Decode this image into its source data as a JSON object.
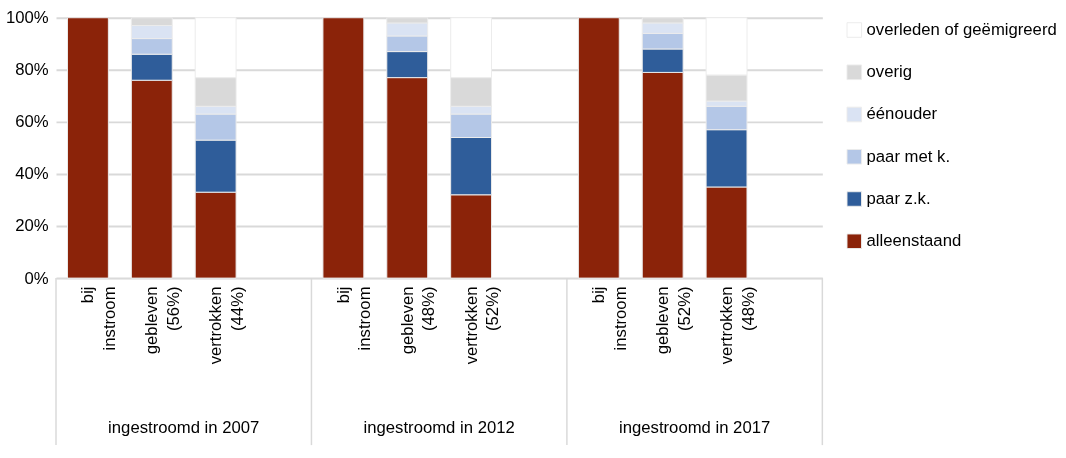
{
  "chart_data": {
    "type": "bar",
    "stacked": true,
    "categories": [
      "bij instroom",
      "gebleven (56%)",
      "vertrokken (44%)",
      null,
      "bij instroom",
      "gebleven (48%)",
      "vertrokken (52%)",
      null,
      "bij instroom",
      "gebleven (52%)",
      "vertrokken (48%)",
      null
    ],
    "series": [
      {
        "name": "alleenstaand",
        "color": "#8b2309",
        "values": [
          100,
          76,
          33,
          null,
          100,
          77,
          32,
          null,
          100,
          79,
          35,
          null
        ]
      },
      {
        "name": "paar z.k.",
        "color": "#2f5d9a",
        "values": [
          0,
          10,
          20,
          null,
          0,
          10,
          22,
          null,
          0,
          9,
          22,
          null
        ]
      },
      {
        "name": "paar met k.",
        "color": "#b4c7e7",
        "values": [
          0,
          6,
          10,
          null,
          0,
          6,
          9,
          null,
          0,
          6,
          9,
          null
        ]
      },
      {
        "name": "éénouder",
        "color": "#dae3f3",
        "values": [
          0,
          5,
          3,
          null,
          0,
          5,
          3,
          null,
          0,
          4,
          2,
          null
        ]
      },
      {
        "name": "overig",
        "color": "#d9d9d9",
        "values": [
          0,
          3,
          11,
          null,
          0,
          2,
          11,
          null,
          0,
          2,
          10,
          null
        ]
      },
      {
        "name": "overleden of geëmigreerd",
        "color": "#ffffff",
        "values": [
          0,
          0,
          23,
          null,
          0,
          0,
          23,
          null,
          0,
          0,
          22,
          null
        ]
      }
    ],
    "annotations": [
      "ingestroomd in 2007",
      "ingestroomd in 2012",
      "ingestroomd in 2017"
    ],
    "ylim": [
      0,
      100
    ],
    "yticks": [
      {
        "value": 0,
        "label": "0%"
      },
      {
        "value": 20,
        "label": "20%"
      },
      {
        "value": 40,
        "label": "40%"
      },
      {
        "value": 60,
        "label": "60%"
      },
      {
        "value": 80,
        "label": "80%"
      },
      {
        "value": 100,
        "label": "100%"
      }
    ],
    "grid": "y",
    "legend": "right"
  }
}
